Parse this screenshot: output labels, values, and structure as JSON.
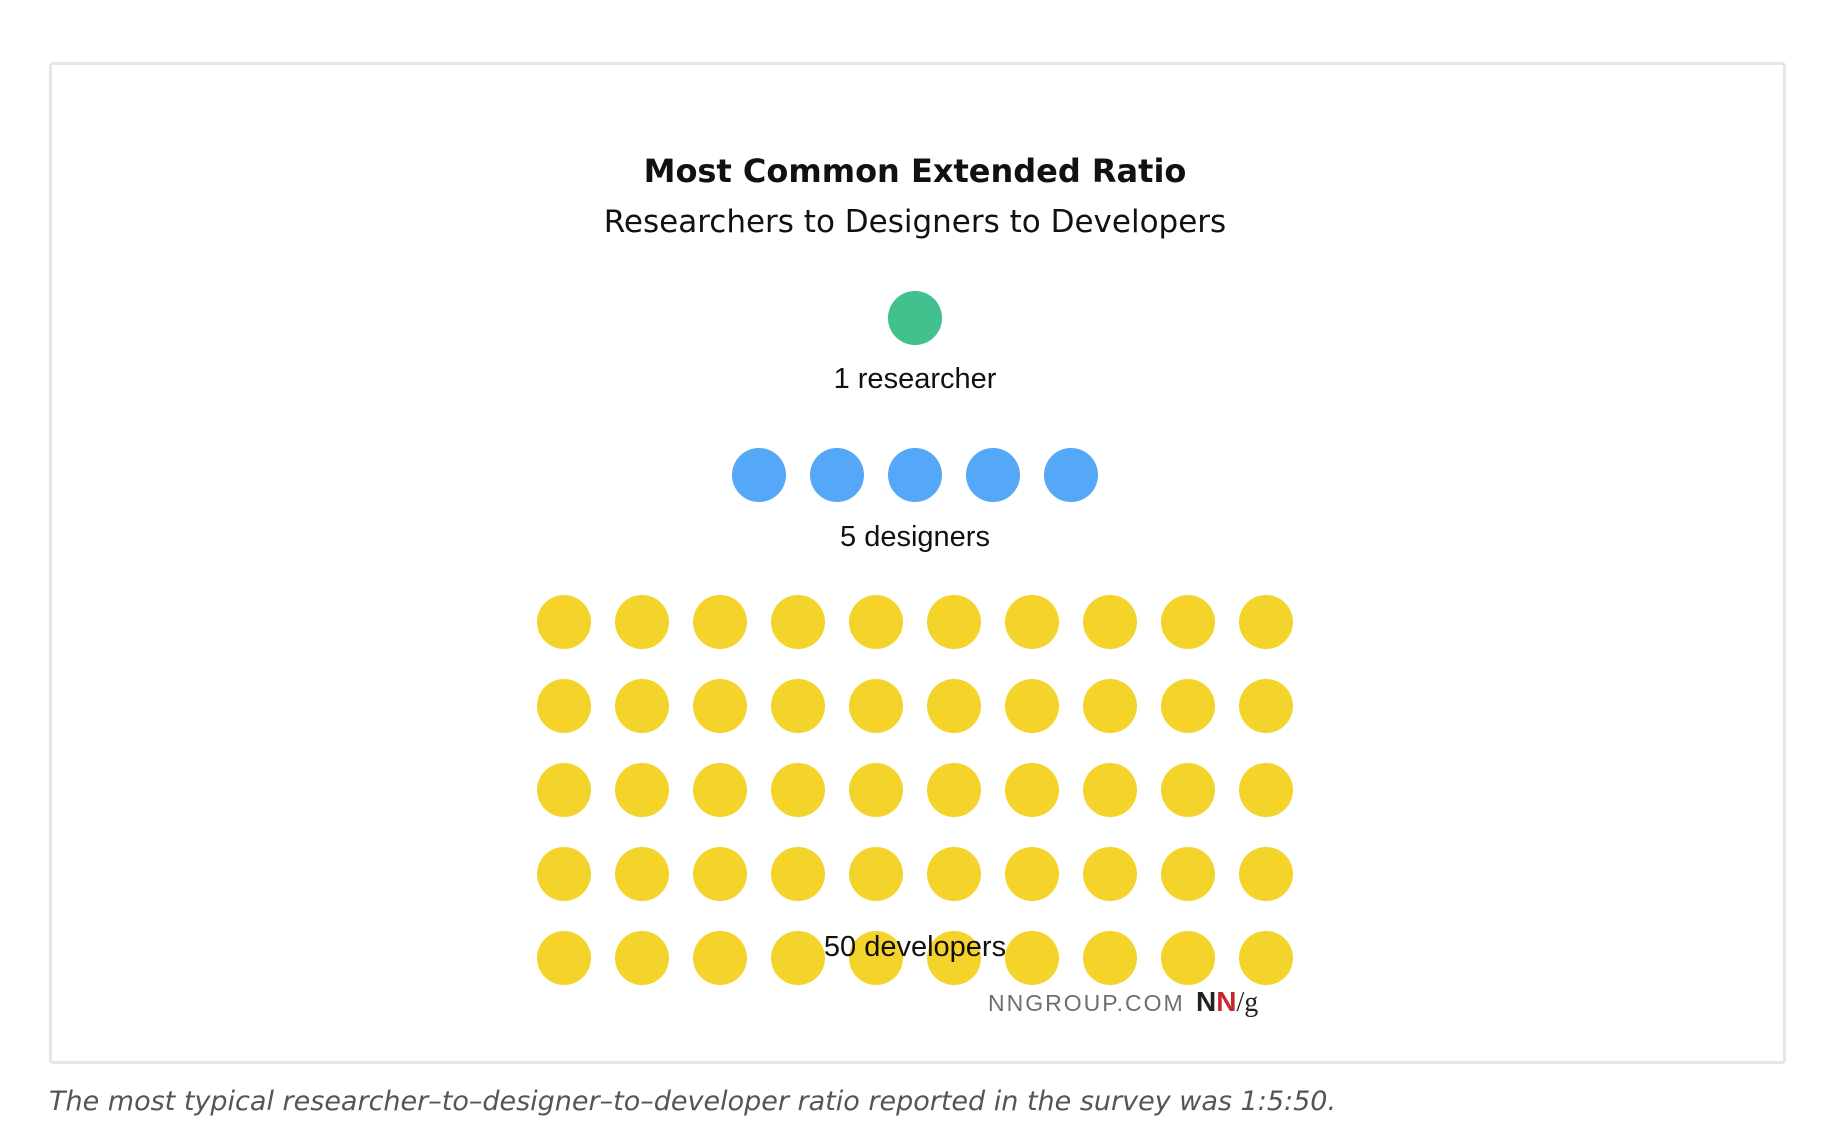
{
  "figure": {
    "title": "Most Common Extended Ratio",
    "subtitle": "Researchers to Designers to Developers",
    "footer_brand": "NNGROUP.COM",
    "logo_text": "NN/g",
    "logo_parts": {
      "n1": "N",
      "n2": "N",
      "slash_g": "/g"
    }
  },
  "groups": [
    {
      "key": "researchers",
      "label": "1 researcher",
      "count": 1,
      "color": "#42c08e"
    },
    {
      "key": "designers",
      "label": "5 designers",
      "count": 5,
      "color": "#55a7f7"
    },
    {
      "key": "developers",
      "label": "50 developers",
      "count": 50,
      "color": "#f4d32b"
    }
  ],
  "caption": "The most typical researcher–to–designer–to–developer ratio reported in the survey was 1:5:50."
}
